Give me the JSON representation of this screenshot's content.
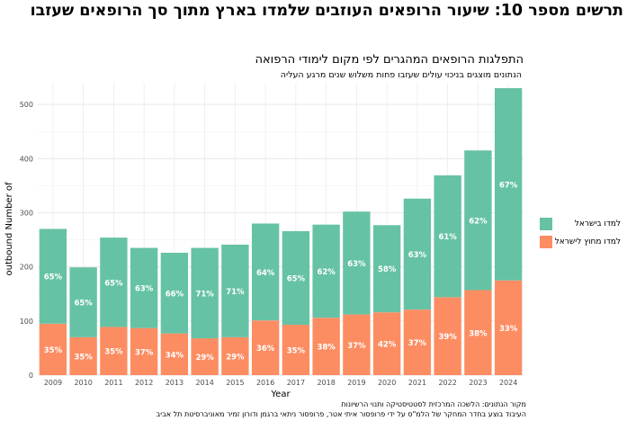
{
  "page": {
    "title": "תרשים מספר 10:  שיעור הרופאים העוזבים שלמדו בארץ מתוך סך הרופאים שעזבו",
    "caption_source": "מקור הנתונים: הלשכה המרכזית לסטטיסטיקה ותנוי הרשיונות",
    "caption_credit": "העיבוד בוצע בחדר המחקר של הלמ\"ס על ידי פרופסור איתי אטר, פרופסור ניתאי ברגמן ודורון זמיר מאוניברסיטת תל אביב"
  },
  "chart_data": {
    "type": "bar",
    "stacked": true,
    "title": "התפלגות הרופאים המהגרים לפי מקום לימודי הרפואה",
    "subtitle": "הנתונים מוצגים בניכוי עולים שעזבו פחות משלוש שנים מרגע העליה",
    "xlabel": "Year",
    "ylabel": "outbound Number of",
    "ylim": [
      0,
      540
    ],
    "yticks": [
      0,
      100,
      200,
      300,
      400,
      500
    ],
    "grid": true,
    "legend_position": "right",
    "categories": [
      "2009",
      "2010",
      "2011",
      "2012",
      "2013",
      "2014",
      "2015",
      "2016",
      "2017",
      "2018",
      "2019",
      "2020",
      "2021",
      "2022",
      "2023",
      "2024"
    ],
    "series": [
      {
        "name": "למדו מחוץ לישראל",
        "color": "#FC8D62",
        "values": [
          95,
          70,
          89,
          87,
          77,
          68,
          70,
          101,
          93,
          106,
          112,
          116,
          121,
          144,
          157,
          175
        ],
        "labels": [
          "35%",
          "35%",
          "35%",
          "37%",
          "34%",
          "29%",
          "29%",
          "36%",
          "35%",
          "38%",
          "37%",
          "42%",
          "37%",
          "39%",
          "38%",
          "33%"
        ]
      },
      {
        "name": "למדו בישראל",
        "color": "#66C2A5",
        "values": [
          175,
          129,
          165,
          148,
          149,
          167,
          171,
          179,
          173,
          172,
          190,
          161,
          205,
          225,
          258,
          355
        ],
        "labels": [
          "65%",
          "65%",
          "65%",
          "63%",
          "66%",
          "71%",
          "71%",
          "64%",
          "65%",
          "62%",
          "63%",
          "58%",
          "63%",
          "61%",
          "62%",
          "67%"
        ]
      }
    ],
    "legend_order": [
      "למדו בישראל",
      "למדו מחוץ לישראל"
    ]
  }
}
